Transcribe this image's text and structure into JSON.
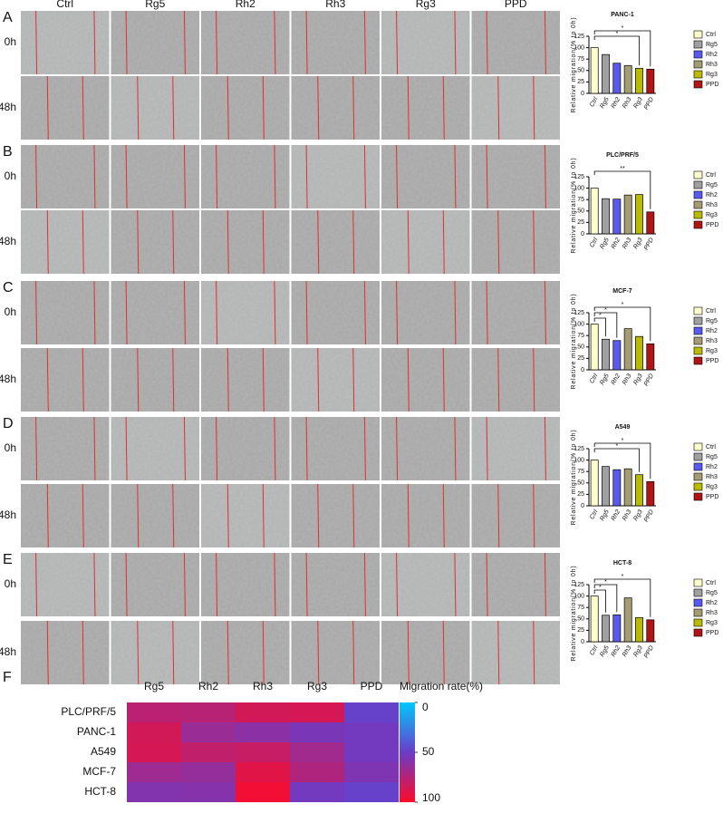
{
  "figure": {
    "panels": [
      "A",
      "B",
      "C",
      "D",
      "E",
      "F"
    ],
    "columns": [
      "Ctrl",
      "Rg5",
      "Rh2",
      "Rh3",
      "Rg3",
      "PPD"
    ],
    "rows": [
      "0h",
      "48h"
    ]
  },
  "chart_data": [
    {
      "type": "bar",
      "title": "PANC-1",
      "ylabel": "Relative migration(% to 0h)",
      "categories": [
        "Ctrl",
        "Rg5",
        "Rh2",
        "Rh3",
        "Rg3",
        "PPD"
      ],
      "values": [
        100,
        85,
        66,
        61,
        55,
        53
      ],
      "colors": [
        "#ffffcc",
        "#a0a0a0",
        "#5a5af0",
        "#a49c72",
        "#baba00",
        "#b01414"
      ],
      "ylim": [
        0,
        125
      ],
      "yticks": [
        0,
        25,
        50,
        75,
        100,
        125
      ],
      "annotations": [
        {
          "text": "*",
          "from": "Ctrl",
          "to": "PPD"
        },
        {
          "text": "*",
          "from": "Ctrl",
          "to": "Rg3"
        }
      ]
    },
    {
      "type": "bar",
      "title": "PLC/PRF/5",
      "ylabel": "Relative migration(% to 0h)",
      "categories": [
        "Ctrl",
        "Rg5",
        "Rh2",
        "Rh3",
        "Rg3",
        "PPD"
      ],
      "values": [
        100,
        77,
        76,
        85,
        86,
        48
      ],
      "colors": [
        "#ffffcc",
        "#a0a0a0",
        "#5a5af0",
        "#a49c72",
        "#baba00",
        "#b01414"
      ],
      "ylim": [
        0,
        125
      ],
      "yticks": [
        0,
        25,
        50,
        75,
        100,
        125
      ],
      "annotations": [
        {
          "text": "**",
          "from": "Ctrl",
          "to": "PPD"
        }
      ]
    },
    {
      "type": "bar",
      "title": "MCF-7",
      "ylabel": "Relative migration(% to 0h)",
      "categories": [
        "Ctrl",
        "Rg5",
        "Rh2",
        "Rh3",
        "Rg3",
        "PPD"
      ],
      "values": [
        100,
        67,
        64,
        90,
        73,
        57
      ],
      "colors": [
        "#ffffcc",
        "#a0a0a0",
        "#5a5af0",
        "#a49c72",
        "#baba00",
        "#b01414"
      ],
      "ylim": [
        0,
        125
      ],
      "yticks": [
        0,
        25,
        50,
        75,
        100,
        125
      ],
      "annotations": [
        {
          "text": "*",
          "from": "Ctrl",
          "to": "PPD"
        },
        {
          "text": "*",
          "from": "Ctrl",
          "to": "Rh2"
        },
        {
          "text": "*",
          "from": "Ctrl",
          "to": "Rg5"
        }
      ]
    },
    {
      "type": "bar",
      "title": "A549",
      "ylabel": "Relative migration(% to 0h)",
      "categories": [
        "Ctrl",
        "Rg5",
        "Rh2",
        "Rh3",
        "Rg3",
        "PPD"
      ],
      "values": [
        100,
        86,
        79,
        81,
        68,
        53
      ],
      "colors": [
        "#ffffcc",
        "#a0a0a0",
        "#5a5af0",
        "#a49c72",
        "#baba00",
        "#b01414"
      ],
      "ylim": [
        0,
        125
      ],
      "yticks": [
        0,
        25,
        50,
        75,
        100,
        125
      ],
      "annotations": [
        {
          "text": "*",
          "from": "Ctrl",
          "to": "PPD"
        },
        {
          "text": "*",
          "from": "Ctrl",
          "to": "Rg3"
        }
      ]
    },
    {
      "type": "bar",
      "title": "HCT-8",
      "ylabel": "Relative migration(% to 0h)",
      "categories": [
        "Ctrl",
        "Rg5",
        "Rh2",
        "Rh3",
        "Rg3",
        "PPD"
      ],
      "values": [
        100,
        58,
        59,
        96,
        53,
        48
      ],
      "colors": [
        "#ffffcc",
        "#a0a0a0",
        "#5a5af0",
        "#a49c72",
        "#baba00",
        "#b01414"
      ],
      "ylim": [
        0,
        125
      ],
      "yticks": [
        0,
        25,
        50,
        75,
        100,
        125
      ],
      "annotations": [
        {
          "text": "*",
          "from": "Ctrl",
          "to": "PPD"
        },
        {
          "text": "*",
          "from": "Ctrl",
          "to": "Rh2"
        },
        {
          "text": "*",
          "from": "Ctrl",
          "to": "Rg5"
        }
      ]
    },
    {
      "type": "heatmap",
      "colorbar_title": "Migration rate(%)",
      "x": [
        "Rg5",
        "Rh2",
        "Rh3",
        "Rg3",
        "PPD"
      ],
      "y": [
        "PLC/PRF/5",
        "PANC-1",
        "A549",
        "MCF-7",
        "HCT-8"
      ],
      "values": [
        [
          77,
          76,
          85,
          86,
          48
        ],
        [
          85,
          66,
          61,
          55,
          53
        ],
        [
          86,
          79,
          81,
          68,
          53
        ],
        [
          67,
          64,
          90,
          73,
          57
        ],
        [
          58,
          59,
          96,
          53,
          48
        ]
      ],
      "zlim": [
        0,
        100
      ],
      "zticks": [
        0,
        50,
        100
      ]
    }
  ]
}
